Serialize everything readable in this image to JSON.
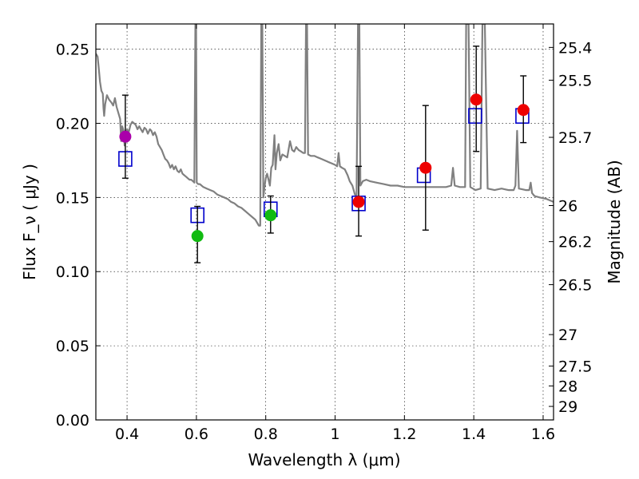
{
  "chart_data": {
    "type": "scatter",
    "title": "",
    "xlabel": "Wavelength  λ (μm)",
    "ylabel": "Flux  F_ν  ( μJy )",
    "y2label": "Magnitude (AB)",
    "xlim": [
      0.31,
      1.63
    ],
    "ylim": [
      0,
      0.267
    ],
    "grid": true,
    "x_ticks": [
      {
        "value": 0.4,
        "label": "0.4"
      },
      {
        "value": 0.6,
        "label": "0.6"
      },
      {
        "value": 0.8,
        "label": "0.8"
      },
      {
        "value": 1.0,
        "label": "1"
      },
      {
        "value": 1.2,
        "label": "1.2"
      },
      {
        "value": 1.4,
        "label": "1.4"
      },
      {
        "value": 1.6,
        "label": "1.6"
      }
    ],
    "y_ticks": [
      {
        "value": 0.0,
        "label": "0.00"
      },
      {
        "value": 0.05,
        "label": "0.05"
      },
      {
        "value": 0.1,
        "label": "0.10"
      },
      {
        "value": 0.15,
        "label": "0.15"
      },
      {
        "value": 0.2,
        "label": "0.20"
      },
      {
        "value": 0.25,
        "label": "0.25"
      }
    ],
    "mag_ticks": [
      {
        "value": 25.4,
        "label": "25.4"
      },
      {
        "value": 25.5,
        "label": "25.5"
      },
      {
        "value": 25.7,
        "label": "25.7"
      },
      {
        "value": 26,
        "label": "26"
      },
      {
        "value": 26.2,
        "label": "26.2"
      },
      {
        "value": 26.5,
        "label": "26.5"
      },
      {
        "value": 27,
        "label": "27"
      },
      {
        "value": 27.5,
        "label": "27.5"
      },
      {
        "value": 28,
        "label": "28"
      },
      {
        "value": 29,
        "label": "29"
      }
    ],
    "observed": [
      {
        "x": 0.395,
        "y": 0.191,
        "ylow": 0.163,
        "yhigh": 0.219,
        "color": "#aa00aa"
      },
      {
        "x": 0.603,
        "y": 0.124,
        "ylow": 0.106,
        "yhigh": 0.144,
        "color": "#11bb11"
      },
      {
        "x": 0.814,
        "y": 0.138,
        "ylow": 0.126,
        "yhigh": 0.151,
        "color": "#11bb11"
      },
      {
        "x": 1.068,
        "y": 0.147,
        "ylow": 0.124,
        "yhigh": 0.171,
        "color": "#ee0000"
      },
      {
        "x": 1.261,
        "y": 0.17,
        "ylow": 0.128,
        "yhigh": 0.212,
        "color": "#ee0000"
      },
      {
        "x": 1.407,
        "y": 0.216,
        "ylow": 0.181,
        "yhigh": 0.252,
        "color": "#ee0000"
      },
      {
        "x": 1.543,
        "y": 0.209,
        "ylow": 0.187,
        "yhigh": 0.232,
        "color": "#ee0000"
      }
    ],
    "model_bands": [
      {
        "x": 0.395,
        "y": 0.176
      },
      {
        "x": 0.603,
        "y": 0.138
      },
      {
        "x": 0.814,
        "y": 0.142
      },
      {
        "x": 1.068,
        "y": 0.146
      },
      {
        "x": 1.256,
        "y": 0.165
      },
      {
        "x": 1.404,
        "y": 0.205
      },
      {
        "x": 1.54,
        "y": 0.205
      }
    ],
    "spectrum": [
      [
        0.31,
        0.247
      ],
      [
        0.315,
        0.245
      ],
      [
        0.318,
        0.238
      ],
      [
        0.322,
        0.228
      ],
      [
        0.326,
        0.222
      ],
      [
        0.33,
        0.22
      ],
      [
        0.332,
        0.21
      ],
      [
        0.334,
        0.205
      ],
      [
        0.337,
        0.213
      ],
      [
        0.342,
        0.219
      ],
      [
        0.348,
        0.216
      ],
      [
        0.355,
        0.214
      ],
      [
        0.36,
        0.212
      ],
      [
        0.365,
        0.217
      ],
      [
        0.37,
        0.211
      ],
      [
        0.375,
        0.207
      ],
      [
        0.38,
        0.203
      ],
      [
        0.383,
        0.188
      ],
      [
        0.386,
        0.198
      ],
      [
        0.39,
        0.195
      ],
      [
        0.393,
        0.185
      ],
      [
        0.396,
        0.193
      ],
      [
        0.4,
        0.196
      ],
      [
        0.405,
        0.194
      ],
      [
        0.41,
        0.199
      ],
      [
        0.415,
        0.201
      ],
      [
        0.42,
        0.2
      ],
      [
        0.425,
        0.199
      ],
      [
        0.43,
        0.196
      ],
      [
        0.435,
        0.198
      ],
      [
        0.44,
        0.196
      ],
      [
        0.445,
        0.194
      ],
      [
        0.45,
        0.197
      ],
      [
        0.455,
        0.196
      ],
      [
        0.46,
        0.193
      ],
      [
        0.466,
        0.196
      ],
      [
        0.47,
        0.195
      ],
      [
        0.475,
        0.192
      ],
      [
        0.48,
        0.194
      ],
      [
        0.485,
        0.191
      ],
      [
        0.49,
        0.186
      ],
      [
        0.495,
        0.184
      ],
      [
        0.5,
        0.182
      ],
      [
        0.505,
        0.179
      ],
      [
        0.51,
        0.176
      ],
      [
        0.515,
        0.175
      ],
      [
        0.52,
        0.173
      ],
      [
        0.525,
        0.17
      ],
      [
        0.53,
        0.172
      ],
      [
        0.535,
        0.169
      ],
      [
        0.54,
        0.171
      ],
      [
        0.545,
        0.168
      ],
      [
        0.55,
        0.167
      ],
      [
        0.555,
        0.169
      ],
      [
        0.56,
        0.166
      ],
      [
        0.565,
        0.165
      ],
      [
        0.57,
        0.164
      ],
      [
        0.575,
        0.163
      ],
      [
        0.58,
        0.162
      ],
      [
        0.585,
        0.162
      ],
      [
        0.59,
        0.161
      ],
      [
        0.594,
        0.16
      ],
      [
        0.597,
        0.267
      ],
      [
        0.599,
        0.267
      ],
      [
        0.601,
        0.16
      ],
      [
        0.605,
        0.159
      ],
      [
        0.61,
        0.159
      ],
      [
        0.615,
        0.158
      ],
      [
        0.62,
        0.157
      ],
      [
        0.63,
        0.156
      ],
      [
        0.64,
        0.155
      ],
      [
        0.65,
        0.154
      ],
      [
        0.66,
        0.152
      ],
      [
        0.67,
        0.151
      ],
      [
        0.68,
        0.15
      ],
      [
        0.69,
        0.149
      ],
      [
        0.7,
        0.147
      ],
      [
        0.71,
        0.146
      ],
      [
        0.72,
        0.144
      ],
      [
        0.73,
        0.143
      ],
      [
        0.74,
        0.141
      ],
      [
        0.75,
        0.139
      ],
      [
        0.76,
        0.137
      ],
      [
        0.77,
        0.135
      ],
      [
        0.775,
        0.133
      ],
      [
        0.78,
        0.131
      ],
      [
        0.784,
        0.131
      ],
      [
        0.787,
        0.267
      ],
      [
        0.79,
        0.267
      ],
      [
        0.793,
        0.15
      ],
      [
        0.797,
        0.158
      ],
      [
        0.8,
        0.163
      ],
      [
        0.804,
        0.166
      ],
      [
        0.808,
        0.162
      ],
      [
        0.812,
        0.158
      ],
      [
        0.816,
        0.17
      ],
      [
        0.82,
        0.172
      ],
      [
        0.825,
        0.192
      ],
      [
        0.828,
        0.169
      ],
      [
        0.832,
        0.18
      ],
      [
        0.837,
        0.186
      ],
      [
        0.842,
        0.175
      ],
      [
        0.848,
        0.179
      ],
      [
        0.855,
        0.178
      ],
      [
        0.862,
        0.177
      ],
      [
        0.87,
        0.188
      ],
      [
        0.876,
        0.182
      ],
      [
        0.882,
        0.181
      ],
      [
        0.888,
        0.184
      ],
      [
        0.895,
        0.182
      ],
      [
        0.902,
        0.181
      ],
      [
        0.908,
        0.18
      ],
      [
        0.913,
        0.18
      ],
      [
        0.916,
        0.267
      ],
      [
        0.919,
        0.267
      ],
      [
        0.922,
        0.179
      ],
      [
        0.93,
        0.178
      ],
      [
        0.94,
        0.178
      ],
      [
        0.95,
        0.177
      ],
      [
        0.96,
        0.176
      ],
      [
        0.97,
        0.175
      ],
      [
        0.98,
        0.174
      ],
      [
        0.99,
        0.173
      ],
      [
        1.0,
        0.172
      ],
      [
        1.006,
        0.171
      ],
      [
        1.01,
        0.18
      ],
      [
        1.014,
        0.171
      ],
      [
        1.02,
        0.17
      ],
      [
        1.028,
        0.169
      ],
      [
        1.036,
        0.165
      ],
      [
        1.042,
        0.161
      ],
      [
        1.05,
        0.158
      ],
      [
        1.057,
        0.152
      ],
      [
        1.062,
        0.151
      ],
      [
        1.066,
        0.267
      ],
      [
        1.07,
        0.267
      ],
      [
        1.073,
        0.158
      ],
      [
        1.08,
        0.161
      ],
      [
        1.09,
        0.162
      ],
      [
        1.1,
        0.161
      ],
      [
        1.12,
        0.16
      ],
      [
        1.14,
        0.159
      ],
      [
        1.16,
        0.158
      ],
      [
        1.18,
        0.158
      ],
      [
        1.2,
        0.157
      ],
      [
        1.24,
        0.157
      ],
      [
        1.28,
        0.157
      ],
      [
        1.32,
        0.157
      ],
      [
        1.335,
        0.158
      ],
      [
        1.34,
        0.17
      ],
      [
        1.345,
        0.158
      ],
      [
        1.36,
        0.157
      ],
      [
        1.375,
        0.157
      ],
      [
        1.378,
        0.267
      ],
      [
        1.385,
        0.267
      ],
      [
        1.39,
        0.157
      ],
      [
        1.405,
        0.155
      ],
      [
        1.42,
        0.156
      ],
      [
        1.425,
        0.267
      ],
      [
        1.432,
        0.267
      ],
      [
        1.44,
        0.156
      ],
      [
        1.46,
        0.155
      ],
      [
        1.48,
        0.156
      ],
      [
        1.5,
        0.155
      ],
      [
        1.515,
        0.155
      ],
      [
        1.52,
        0.158
      ],
      [
        1.525,
        0.195
      ],
      [
        1.53,
        0.156
      ],
      [
        1.55,
        0.155
      ],
      [
        1.56,
        0.155
      ],
      [
        1.564,
        0.16
      ],
      [
        1.568,
        0.153
      ],
      [
        1.575,
        0.151
      ],
      [
        1.59,
        0.15
      ],
      [
        1.61,
        0.149
      ],
      [
        1.63,
        0.147
      ]
    ],
    "colors": {
      "spectrum": "#808080",
      "model_box": "#0000cc",
      "errorbar": "#000000"
    }
  }
}
